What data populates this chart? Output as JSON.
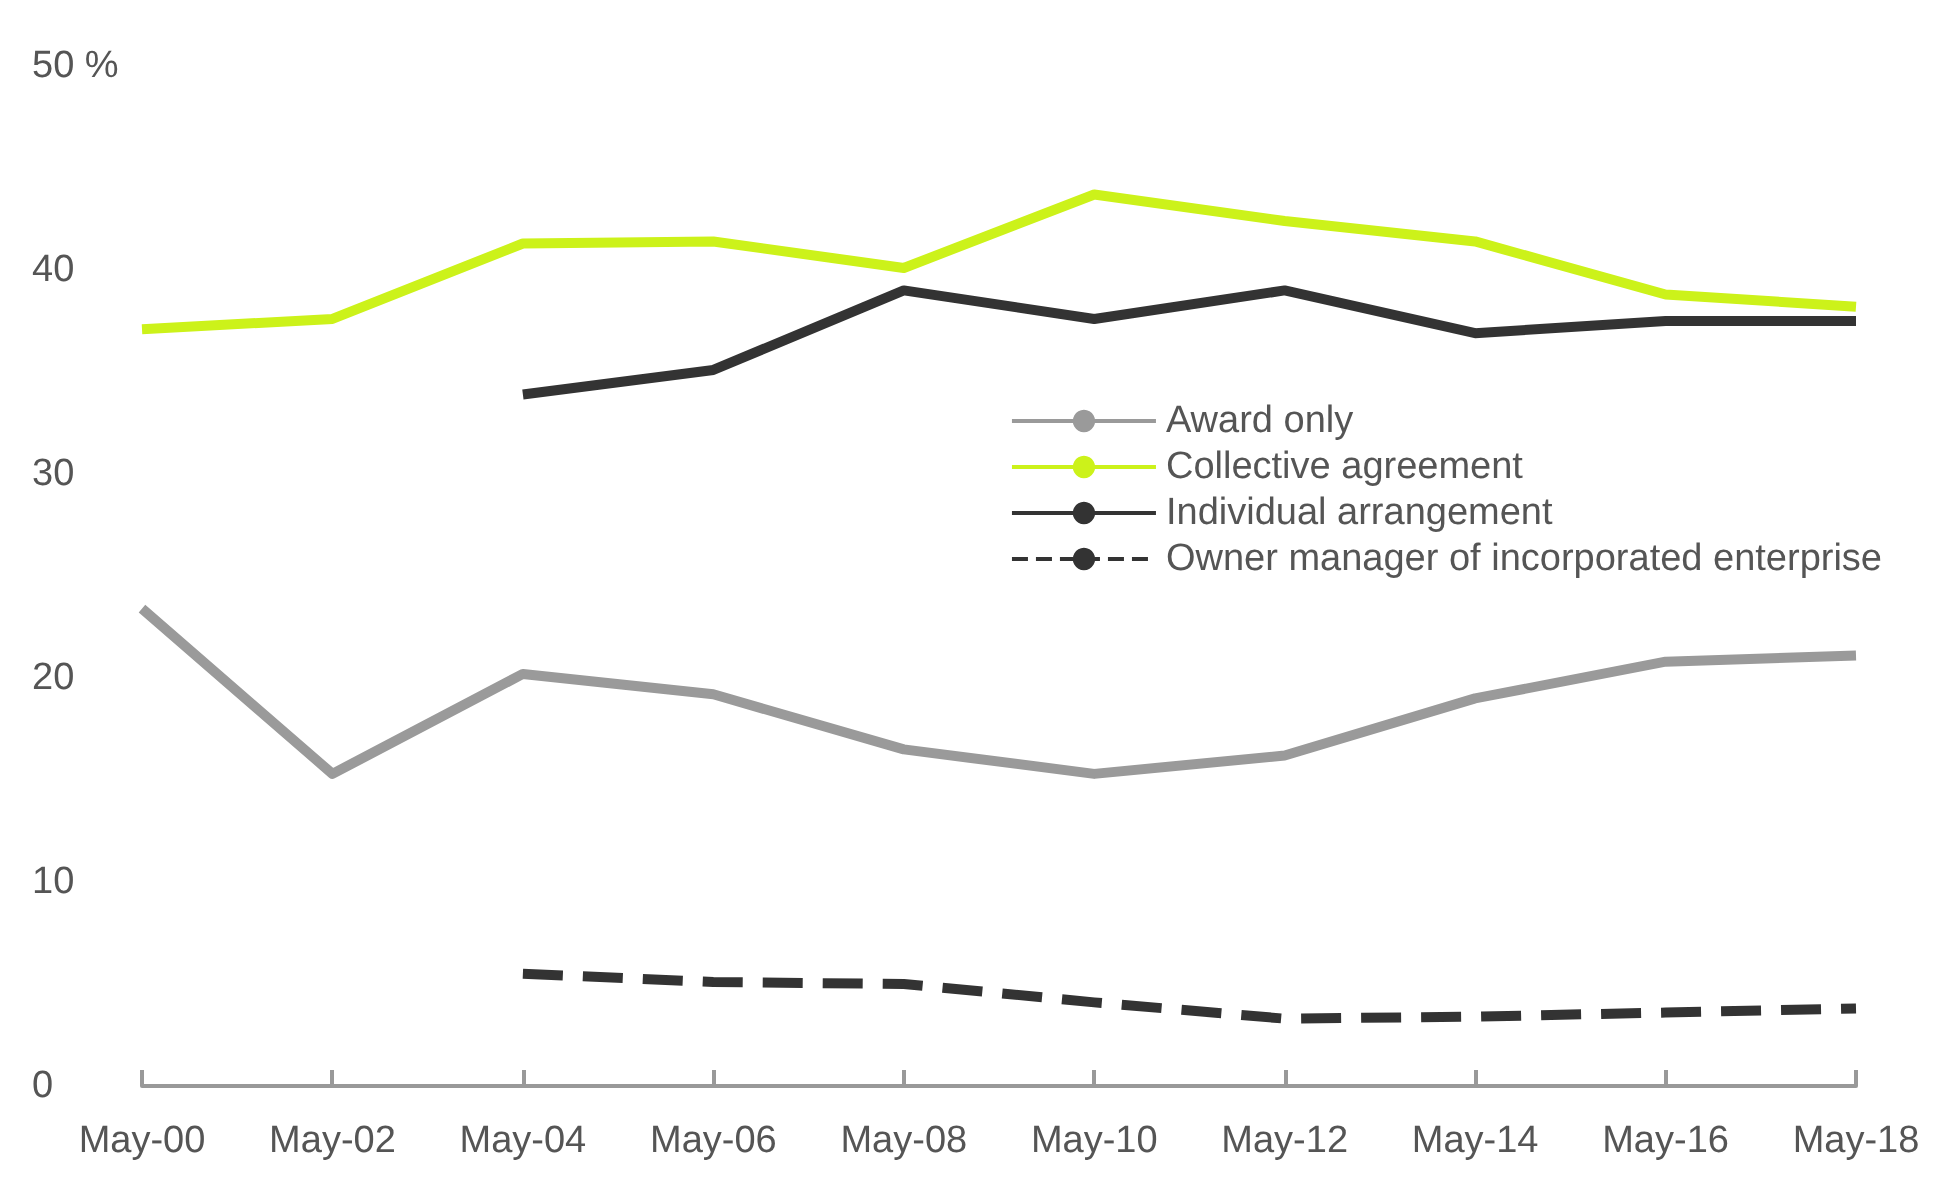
{
  "chart_data": {
    "type": "line",
    "categories": [
      "May-00",
      "May-02",
      "May-04",
      "May-06",
      "May-08",
      "May-10",
      "May-12",
      "May-14",
      "May-16",
      "May-18"
    ],
    "series": [
      {
        "name": "Award only",
        "color": "#9a9a9a",
        "values": [
          23.4,
          15.3,
          20.2,
          19.2,
          16.5,
          15.3,
          16.2,
          19.0,
          20.8,
          21.1
        ]
      },
      {
        "name": "Collective agreement",
        "color": "#ccf21a",
        "values": [
          37.1,
          37.6,
          41.3,
          41.4,
          40.1,
          43.7,
          42.4,
          41.4,
          38.8,
          38.2
        ]
      },
      {
        "name": "Individual arrangement",
        "color": "#333333",
        "values": [
          null,
          null,
          33.9,
          35.1,
          39.0,
          37.6,
          39.0,
          36.9,
          37.5,
          37.5
        ]
      },
      {
        "name": "Owner manager of incorporated enterprise",
        "color": "#333333",
        "line_style": "dashed",
        "values": [
          null,
          null,
          5.5,
          5.1,
          5.0,
          4.1,
          3.3,
          3.4,
          3.6,
          3.8
        ]
      }
    ],
    "ylim": [
      0,
      50
    ],
    "yticks": [
      0,
      10,
      20,
      30,
      40,
      {
        "value": 50,
        "label": "50 %"
      }
    ],
    "grid": false,
    "legend": "right",
    "marker": "none",
    "line_style": "solid"
  }
}
